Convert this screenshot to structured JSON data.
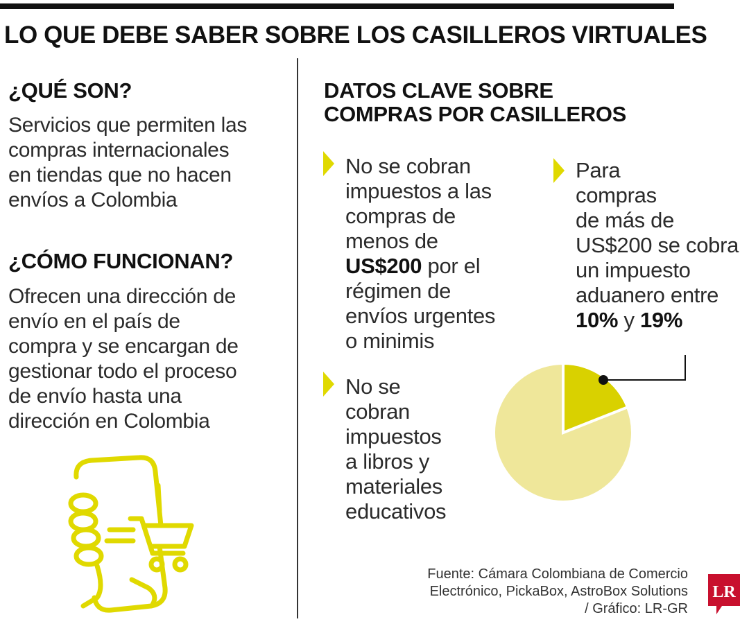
{
  "header": {
    "title": "LO QUE DEBE SABER SOBRE LOS CASILLEROS VIRTUALES"
  },
  "left": {
    "que_son": {
      "heading": "¿QUÉ SON?",
      "lines": [
        "Servicios que permiten las",
        "compras internacionales",
        "en tiendas que no hacen",
        "envíos a Colombia"
      ]
    },
    "como_funcionan": {
      "heading": "¿CÓMO FUNCIONAN?",
      "lines": [
        "Ofrecen una dirección de",
        "envío en el país de",
        "compra y se encargan de",
        "gestionar todo el proceso",
        "de envío hasta una",
        "dirección en Colombia"
      ]
    }
  },
  "right": {
    "heading_lines": [
      "DATOS CLAVE SOBRE",
      "COMPRAS POR CASILLEROS"
    ],
    "bullet1": {
      "l1": "No se cobran",
      "l2": "impuestos a las",
      "l3": "compras de",
      "l4": "menos de",
      "l5_bold": "US$200",
      "l5_rest": " por el",
      "l6": "régimen de",
      "l7": "envíos urgentes",
      "l8": "o minimis"
    },
    "bullet2": {
      "l1": "Para",
      "l2": "compras",
      "l3": "de más de",
      "l4": "US$200 se cobra",
      "l5": "un impuesto",
      "l6": "aduanero entre",
      "l7_bold1": "10%",
      "l7_mid": " y ",
      "l7_bold2": "19%"
    },
    "bullet3": {
      "lines": [
        "No se",
        "cobran",
        "impuestos",
        "a libros y",
        "materiales",
        "educativos"
      ]
    }
  },
  "pie": {
    "highlight_fraction": 0.19,
    "colors": {
      "highlight": "#d9d100",
      "rest": "#efe79a",
      "accent": "#e0d900"
    }
  },
  "source": {
    "lines": [
      "Fuente: Cámara Colombiana de Comercio",
      "Electrónico, PickaBox, AstroBox Solutions",
      "/ Gráfico: LR-GR"
    ]
  },
  "logo": {
    "text": "LR",
    "color": "#c8102e"
  },
  "icons": {
    "bullet": "triangle-arrow-icon",
    "illustration": "phone-shopping-cart-icon"
  }
}
